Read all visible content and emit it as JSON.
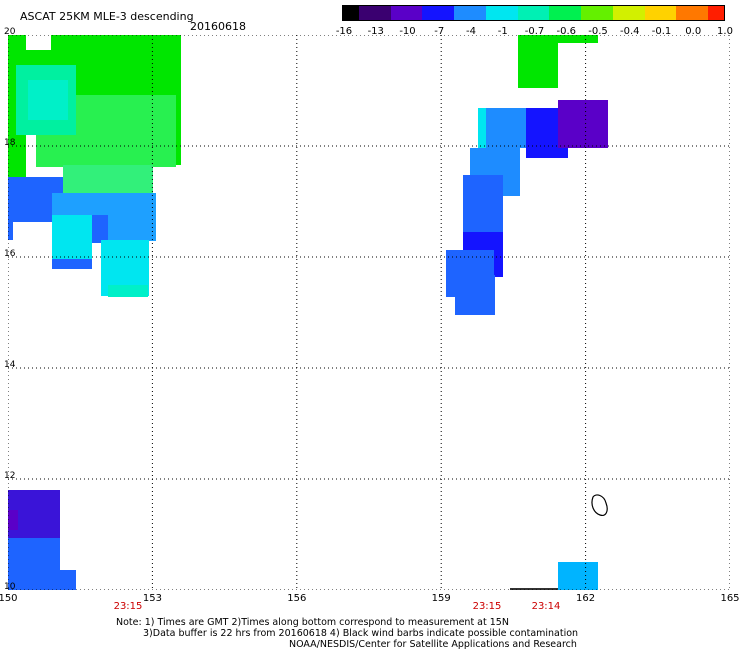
{
  "title": "ASCAT 25KM MLE-3 descending",
  "date": "20160618",
  "colorbar": {
    "labels": [
      "-16",
      "-13",
      "-10",
      "-7",
      "-4",
      "-1",
      "-0.7",
      "-0.6",
      "-0.5",
      "-0.4",
      "-0.1",
      "0.0",
      "1.0"
    ],
    "colors": [
      "#000000",
      "#3a0070",
      "#5a00c8",
      "#1414ff",
      "#1e8cff",
      "#00e6f0",
      "#00f0b4",
      "#00f050",
      "#64f000",
      "#d2f000",
      "#ffd200",
      "#ff7800",
      "#ff1e00"
    ]
  },
  "axes": {
    "x_ticks": [
      "150",
      "153",
      "156",
      "159",
      "162",
      "165"
    ],
    "y_ticks": [
      "20",
      "18",
      "16",
      "14",
      "12",
      "10"
    ]
  },
  "time_labels": [
    "23:15",
    "23:15",
    "23:14"
  ],
  "notes": [
    "Note: 1) Times are GMT 2)Times along bottom correspond to measurement at 15N",
    "3)Data buffer is 22 hrs from 20160618 4) Black wind barbs indicate possible contamination",
    "NOAA/NESDIS/Center for Satellite Applications and Research"
  ]
}
